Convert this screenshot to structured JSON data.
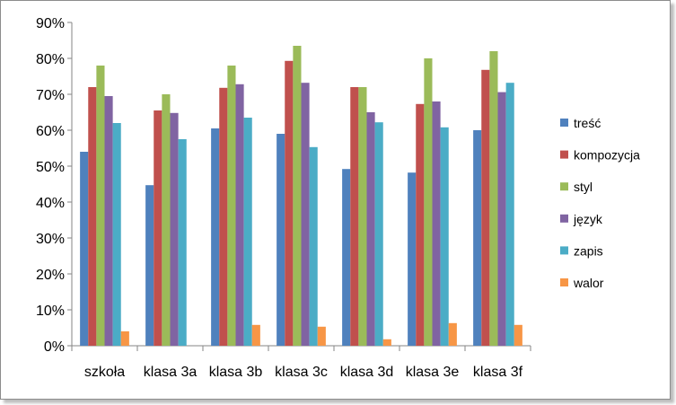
{
  "chart_data": {
    "type": "bar",
    "categories": [
      "szkoła",
      "klasa 3a",
      "klasa 3b",
      "klasa 3c",
      "klasa 3d",
      "klasa 3e",
      "klasa 3f"
    ],
    "series": [
      {
        "name": "treść",
        "color": "#4f81bd",
        "values": [
          54,
          44.7,
          60.5,
          59,
          49.2,
          48.2,
          60
        ]
      },
      {
        "name": "kompozycja",
        "color": "#c0504d",
        "values": [
          72,
          65.5,
          71.8,
          79.3,
          72,
          67.3,
          76.8
        ]
      },
      {
        "name": "styl",
        "color": "#9bbb59",
        "values": [
          78,
          70,
          78,
          83.5,
          72,
          80,
          82
        ]
      },
      {
        "name": "język",
        "color": "#8064a2",
        "values": [
          69.5,
          64.8,
          72.8,
          73.2,
          65,
          68,
          70.6
        ]
      },
      {
        "name": "zapis",
        "color": "#4bacc6",
        "values": [
          62,
          57.5,
          63.5,
          55.3,
          62.2,
          60.8,
          73.2
        ]
      },
      {
        "name": "walor",
        "color": "#f79646",
        "values": [
          4,
          0,
          5.8,
          5.3,
          1.8,
          6.3,
          5.8
        ]
      }
    ],
    "y_ticks": [
      "0%",
      "10%",
      "20%",
      "30%",
      "40%",
      "50%",
      "60%",
      "70%",
      "80%",
      "90%"
    ],
    "ylim": [
      0,
      90
    ],
    "grid": false,
    "legend_position": "right"
  }
}
